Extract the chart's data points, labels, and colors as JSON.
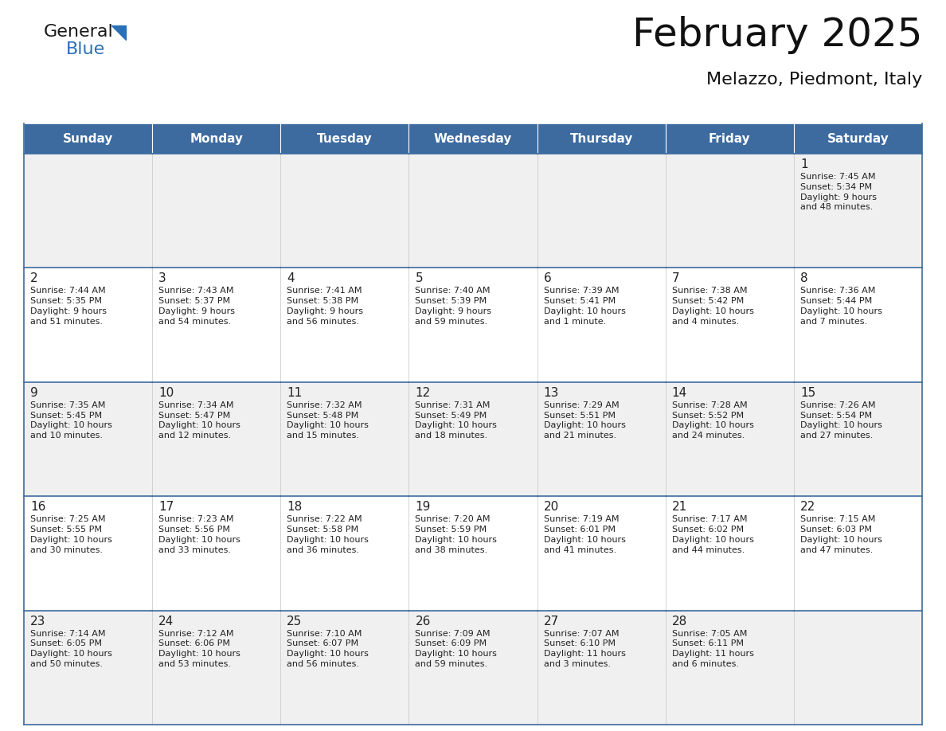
{
  "title": "February 2025",
  "subtitle": "Melazzo, Piedmont, Italy",
  "header_bg_color": "#3D6B9F",
  "header_text_color": "#FFFFFF",
  "day_names": [
    "Sunday",
    "Monday",
    "Tuesday",
    "Wednesday",
    "Thursday",
    "Friday",
    "Saturday"
  ],
  "row_bg_even": "#F0F0F0",
  "row_bg_odd": "#FFFFFF",
  "cell_border_color": "#3D6B9F",
  "day_number_color": "#222222",
  "day_text_color": "#222222",
  "logo_general_color": "#1a1a1a",
  "logo_blue_color": "#2970B8",
  "logo_triangle_color": "#2970B8",
  "calendar_data": [
    [
      null,
      null,
      null,
      null,
      null,
      null,
      {
        "day": 1,
        "sunrise": "7:45 AM",
        "sunset": "5:34 PM",
        "daylight": "9 hours\nand 48 minutes."
      }
    ],
    [
      {
        "day": 2,
        "sunrise": "7:44 AM",
        "sunset": "5:35 PM",
        "daylight": "9 hours\nand 51 minutes."
      },
      {
        "day": 3,
        "sunrise": "7:43 AM",
        "sunset": "5:37 PM",
        "daylight": "9 hours\nand 54 minutes."
      },
      {
        "day": 4,
        "sunrise": "7:41 AM",
        "sunset": "5:38 PM",
        "daylight": "9 hours\nand 56 minutes."
      },
      {
        "day": 5,
        "sunrise": "7:40 AM",
        "sunset": "5:39 PM",
        "daylight": "9 hours\nand 59 minutes."
      },
      {
        "day": 6,
        "sunrise": "7:39 AM",
        "sunset": "5:41 PM",
        "daylight": "10 hours\nand 1 minute."
      },
      {
        "day": 7,
        "sunrise": "7:38 AM",
        "sunset": "5:42 PM",
        "daylight": "10 hours\nand 4 minutes."
      },
      {
        "day": 8,
        "sunrise": "7:36 AM",
        "sunset": "5:44 PM",
        "daylight": "10 hours\nand 7 minutes."
      }
    ],
    [
      {
        "day": 9,
        "sunrise": "7:35 AM",
        "sunset": "5:45 PM",
        "daylight": "10 hours\nand 10 minutes."
      },
      {
        "day": 10,
        "sunrise": "7:34 AM",
        "sunset": "5:47 PM",
        "daylight": "10 hours\nand 12 minutes."
      },
      {
        "day": 11,
        "sunrise": "7:32 AM",
        "sunset": "5:48 PM",
        "daylight": "10 hours\nand 15 minutes."
      },
      {
        "day": 12,
        "sunrise": "7:31 AM",
        "sunset": "5:49 PM",
        "daylight": "10 hours\nand 18 minutes."
      },
      {
        "day": 13,
        "sunrise": "7:29 AM",
        "sunset": "5:51 PM",
        "daylight": "10 hours\nand 21 minutes."
      },
      {
        "day": 14,
        "sunrise": "7:28 AM",
        "sunset": "5:52 PM",
        "daylight": "10 hours\nand 24 minutes."
      },
      {
        "day": 15,
        "sunrise": "7:26 AM",
        "sunset": "5:54 PM",
        "daylight": "10 hours\nand 27 minutes."
      }
    ],
    [
      {
        "day": 16,
        "sunrise": "7:25 AM",
        "sunset": "5:55 PM",
        "daylight": "10 hours\nand 30 minutes."
      },
      {
        "day": 17,
        "sunrise": "7:23 AM",
        "sunset": "5:56 PM",
        "daylight": "10 hours\nand 33 minutes."
      },
      {
        "day": 18,
        "sunrise": "7:22 AM",
        "sunset": "5:58 PM",
        "daylight": "10 hours\nand 36 minutes."
      },
      {
        "day": 19,
        "sunrise": "7:20 AM",
        "sunset": "5:59 PM",
        "daylight": "10 hours\nand 38 minutes."
      },
      {
        "day": 20,
        "sunrise": "7:19 AM",
        "sunset": "6:01 PM",
        "daylight": "10 hours\nand 41 minutes."
      },
      {
        "day": 21,
        "sunrise": "7:17 AM",
        "sunset": "6:02 PM",
        "daylight": "10 hours\nand 44 minutes."
      },
      {
        "day": 22,
        "sunrise": "7:15 AM",
        "sunset": "6:03 PM",
        "daylight": "10 hours\nand 47 minutes."
      }
    ],
    [
      {
        "day": 23,
        "sunrise": "7:14 AM",
        "sunset": "6:05 PM",
        "daylight": "10 hours\nand 50 minutes."
      },
      {
        "day": 24,
        "sunrise": "7:12 AM",
        "sunset": "6:06 PM",
        "daylight": "10 hours\nand 53 minutes."
      },
      {
        "day": 25,
        "sunrise": "7:10 AM",
        "sunset": "6:07 PM",
        "daylight": "10 hours\nand 56 minutes."
      },
      {
        "day": 26,
        "sunrise": "7:09 AM",
        "sunset": "6:09 PM",
        "daylight": "10 hours\nand 59 minutes."
      },
      {
        "day": 27,
        "sunrise": "7:07 AM",
        "sunset": "6:10 PM",
        "daylight": "11 hours\nand 3 minutes."
      },
      {
        "day": 28,
        "sunrise": "7:05 AM",
        "sunset": "6:11 PM",
        "daylight": "11 hours\nand 6 minutes."
      },
      null
    ]
  ]
}
